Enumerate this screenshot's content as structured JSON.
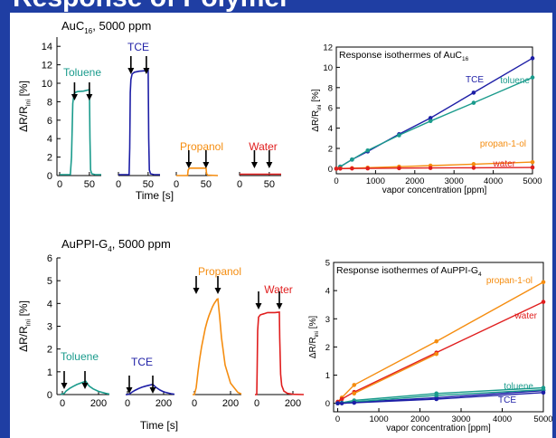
{
  "heading": "Response of Polymer",
  "chart_data": [
    {
      "id": "auc16_transients",
      "type": "line",
      "panel_title": "AuC16, 5000 ppm",
      "xlabel": "Time [s]",
      "ylabel": "ΔR/Rini [%]",
      "ylim": [
        0,
        15
      ],
      "yticks": [
        0,
        2,
        4,
        6,
        8,
        10,
        12,
        14
      ],
      "xlim": [
        0,
        70
      ],
      "xticks": [
        0,
        50
      ],
      "subplots": [
        {
          "name": "Toluene",
          "color": "#1a9b8c",
          "arrows": [
            25,
            50
          ],
          "x": [
            0,
            18,
            20,
            22,
            24,
            26,
            30,
            40,
            50,
            51,
            52,
            54,
            60,
            70
          ],
          "y": [
            0.1,
            0.1,
            2.0,
            7.8,
            8.8,
            9.0,
            9.1,
            9.15,
            9.3,
            4.0,
            0.6,
            0.2,
            0.1,
            0.1
          ]
        },
        {
          "name": "TCE",
          "color": "#1d1ea6",
          "arrows": [
            21,
            47
          ],
          "x": [
            0,
            18,
            19,
            20,
            21,
            23,
            27,
            35,
            45,
            50,
            51,
            52,
            54,
            60,
            70
          ],
          "y": [
            0.1,
            0.1,
            3.0,
            9.0,
            10.4,
            11.0,
            11.2,
            11.3,
            11.35,
            11.4,
            4.0,
            0.6,
            0.2,
            0.1,
            0.1
          ]
        },
        {
          "name": "Propanol",
          "color": "#f58d10",
          "arrows": [
            21,
            50
          ],
          "x": [
            0,
            19,
            20,
            22,
            35,
            50,
            51,
            53,
            70
          ],
          "y": [
            0.0,
            0.0,
            0.6,
            0.8,
            0.8,
            0.8,
            0.2,
            0.05,
            0.0
          ]
        },
        {
          "name": "Water",
          "color": "#e01e1e",
          "arrows": [
            25,
            50
          ],
          "x": [
            0,
            70
          ],
          "y": [
            0.15,
            0.15
          ]
        }
      ]
    },
    {
      "id": "auc16_isotherms",
      "type": "line",
      "panel_title": "Response isothermes of AuC16",
      "xlabel": "vapor concentration [ppm]",
      "ylabel": "ΔR/Rini [%]",
      "xlim": [
        0,
        5000
      ],
      "ylim": [
        -0.5,
        12
      ],
      "xticks": [
        0,
        1000,
        2000,
        3000,
        4000,
        5000
      ],
      "yticks": [
        0,
        2,
        4,
        6,
        8,
        10,
        12
      ],
      "series": [
        {
          "name": "TCE",
          "color": "#1d1ea6",
          "x": [
            0,
            100,
            400,
            800,
            1600,
            2400,
            3500,
            5000
          ],
          "y": [
            0,
            0.2,
            0.9,
            1.7,
            3.4,
            5.0,
            7.5,
            10.9
          ]
        },
        {
          "name": "toluene",
          "color": "#1a9b8c",
          "x": [
            0,
            100,
            400,
            800,
            1600,
            2400,
            3500,
            5000
          ],
          "y": [
            0,
            0.2,
            0.9,
            1.8,
            3.3,
            4.7,
            6.5,
            9.0
          ]
        },
        {
          "name": "propan-1-ol",
          "color": "#f58d10",
          "x": [
            0,
            100,
            400,
            800,
            1600,
            2400,
            3500,
            5000
          ],
          "y": [
            0,
            0.02,
            0.05,
            0.1,
            0.2,
            0.3,
            0.45,
            0.65
          ]
        },
        {
          "name": "water",
          "color": "#e01e1e",
          "x": [
            0,
            100,
            400,
            800,
            1600,
            2400,
            3500,
            5000
          ],
          "y": [
            0,
            0.01,
            0.02,
            0.03,
            0.05,
            0.07,
            0.09,
            0.12
          ]
        }
      ]
    },
    {
      "id": "auppi_transients",
      "type": "line",
      "panel_title": "AuPPI-G4, 5000 ppm",
      "xlabel": "Time [s]",
      "ylabel": "ΔR/Rini [%]",
      "ylim": [
        0,
        6
      ],
      "yticks": [
        0,
        1,
        2,
        3,
        4,
        5,
        6
      ],
      "xlim": [
        -10,
        260
      ],
      "xticks": [
        0,
        200
      ],
      "subplots": [
        {
          "name": "Toluene",
          "color": "#1a9b8c",
          "arrows": [
            10,
            125
          ],
          "x": [
            -10,
            0,
            10,
            20,
            40,
            60,
            80,
            100,
            120,
            130,
            140,
            150,
            170,
            200,
            240,
            260
          ],
          "y": [
            0.02,
            0.02,
            0.05,
            0.15,
            0.27,
            0.36,
            0.44,
            0.5,
            0.56,
            0.58,
            0.45,
            0.36,
            0.25,
            0.14,
            0.05,
            0.02
          ]
        },
        {
          "name": "TCE",
          "color": "#1d1ea6",
          "arrows": [
            10,
            140
          ],
          "x": [
            -10,
            0,
            10,
            20,
            40,
            60,
            80,
            100,
            120,
            140,
            150,
            160,
            180,
            200,
            240,
            260
          ],
          "y": [
            0.0,
            0.0,
            0.02,
            0.08,
            0.18,
            0.26,
            0.32,
            0.37,
            0.41,
            0.45,
            0.37,
            0.3,
            0.2,
            0.12,
            0.04,
            0.01
          ]
        },
        {
          "name": "Propanol",
          "color": "#f58d10",
          "arrows": [
            10,
            130
          ],
          "x": [
            -10,
            0,
            10,
            20,
            30,
            40,
            50,
            60,
            70,
            80,
            90,
            100,
            110,
            120,
            125,
            130,
            140,
            150,
            170,
            200,
            240,
            260
          ],
          "y": [
            0.0,
            0.0,
            0.3,
            1.0,
            1.6,
            2.1,
            2.5,
            2.9,
            3.2,
            3.45,
            3.65,
            3.85,
            4.0,
            4.12,
            4.18,
            4.2,
            3.4,
            2.5,
            1.3,
            0.5,
            0.1,
            0.02
          ]
        },
        {
          "name": "Water",
          "color": "#e01e1e",
          "arrows": [
            10,
            125
          ],
          "x": [
            -10,
            0,
            2,
            5,
            10,
            20,
            40,
            60,
            80,
            100,
            125,
            127,
            132,
            138,
            150,
            170,
            200,
            260
          ],
          "y": [
            0.0,
            0.0,
            1.0,
            2.8,
            3.4,
            3.5,
            3.55,
            3.6,
            3.6,
            3.6,
            3.62,
            2.5,
            0.9,
            0.4,
            0.15,
            0.05,
            0.01,
            0.0
          ]
        }
      ]
    },
    {
      "id": "auppi_isotherms",
      "type": "line",
      "panel_title": "Response isothermes of AuPPI-G4",
      "xlabel": "vapor concentration [ppm]",
      "ylabel": "ΔR/Rini [%]",
      "xlim": [
        -100,
        5000
      ],
      "ylim": [
        -0.3,
        5
      ],
      "xticks": [
        0,
        1000,
        2000,
        3000,
        4000,
        5000
      ],
      "yticks": [
        0,
        1,
        2,
        3,
        4,
        5
      ],
      "series": [
        {
          "name": "propan-1-ol",
          "color": "#f58d10",
          "x": [
            0,
            100,
            400,
            2400,
            5000
          ],
          "y": [
            0.05,
            0.2,
            0.65,
            2.2,
            4.3
          ]
        },
        {
          "name": "water",
          "color": "#e01e1e",
          "x": [
            0,
            100,
            400,
            2400,
            5000
          ],
          "y": [
            0.05,
            0.15,
            0.4,
            1.8,
            3.6
          ]
        },
        {
          "name": "propan-1-ol-b",
          "color": "#f58d10",
          "x": [
            400,
            2400
          ],
          "y": [
            0.35,
            1.75
          ]
        },
        {
          "name": "toluene",
          "color": "#1a9b8c",
          "x": [
            0,
            100,
            400,
            2400,
            5000
          ],
          "y": [
            0.0,
            0.02,
            0.1,
            0.35,
            0.55
          ]
        },
        {
          "name": "TCE",
          "color": "#1d1ea6",
          "x": [
            0,
            100,
            400,
            2400,
            5000
          ],
          "y": [
            0.0,
            0.0,
            0.03,
            0.2,
            0.45
          ]
        },
        {
          "name": "toluene-b",
          "color": "#1a9b8c",
          "x": [
            0,
            400,
            2400,
            5000
          ],
          "y": [
            0.0,
            0.05,
            0.28,
            0.48
          ]
        },
        {
          "name": "TCE-b",
          "color": "#1d1ea6",
          "x": [
            0,
            400,
            2400,
            5000
          ],
          "y": [
            0.0,
            0.02,
            0.15,
            0.38
          ]
        }
      ]
    }
  ]
}
